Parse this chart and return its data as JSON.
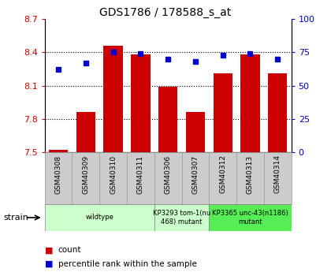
{
  "title": "GDS1786 / 178588_s_at",
  "samples": [
    "GSM40308",
    "GSM40309",
    "GSM40310",
    "GSM40311",
    "GSM40306",
    "GSM40307",
    "GSM40312",
    "GSM40313",
    "GSM40314"
  ],
  "count_values": [
    7.52,
    7.86,
    8.46,
    8.38,
    8.09,
    7.86,
    8.21,
    8.38,
    8.21
  ],
  "percentile_values": [
    62,
    67,
    75,
    74,
    70,
    68,
    73,
    74,
    70
  ],
  "ylim_left": [
    7.5,
    8.7
  ],
  "ylim_right": [
    0,
    100
  ],
  "yticks_left": [
    7.5,
    7.8,
    8.1,
    8.4,
    8.7
  ],
  "yticks_right": [
    0,
    25,
    50,
    75,
    100
  ],
  "bar_color": "#cc0000",
  "dot_color": "#0000cc",
  "tick_label_color_left": "#cc0000",
  "tick_label_color_right": "#0000cc",
  "legend_count_label": "count",
  "legend_pct_label": "percentile rank within the sample",
  "strain_label": "strain",
  "group_wildtype": {
    "start": 0,
    "end": 3,
    "label": "wildtype",
    "color": "#ccffcc"
  },
  "group_tom1": {
    "start": 4,
    "end": 5,
    "label": "KP3293 tom-1(nu\n468) mutant",
    "color": "#ccffcc"
  },
  "group_unc43": {
    "start": 6,
    "end": 8,
    "label": "KP3365 unc-43(n1186)\nmutant",
    "color": "#55ee55"
  },
  "sample_bg_color": "#cccccc",
  "sample_border_color": "#999999"
}
